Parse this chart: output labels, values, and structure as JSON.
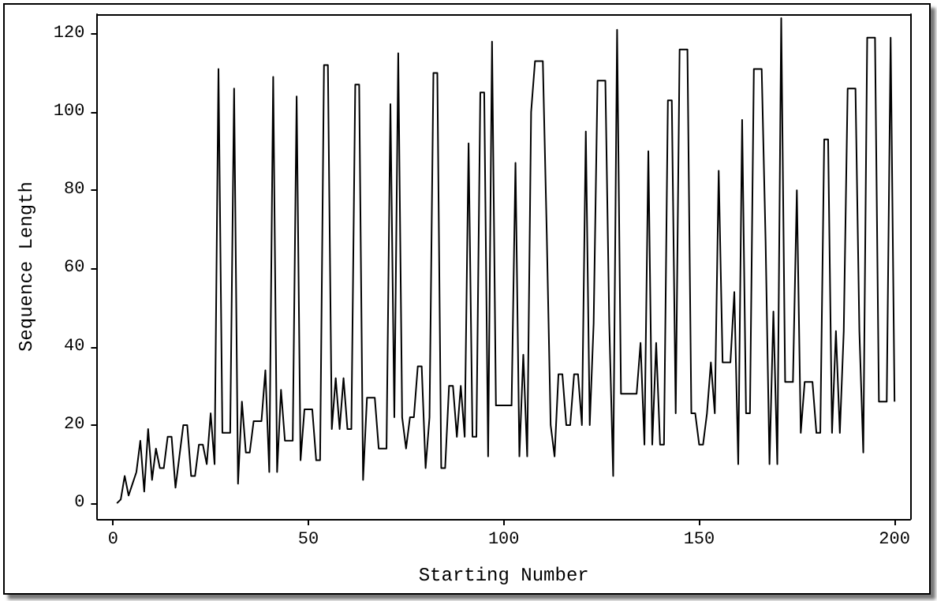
{
  "chart_data": {
    "type": "line",
    "xlabel": "Starting Number",
    "ylabel": "Sequence Length",
    "x": [
      1,
      2,
      3,
      4,
      5,
      6,
      7,
      8,
      9,
      10,
      11,
      12,
      13,
      14,
      15,
      16,
      17,
      18,
      19,
      20,
      21,
      22,
      23,
      24,
      25,
      26,
      27,
      28,
      29,
      30,
      31,
      32,
      33,
      34,
      35,
      36,
      37,
      38,
      39,
      40,
      41,
      42,
      43,
      44,
      45,
      46,
      47,
      48,
      49,
      50,
      51,
      52,
      53,
      54,
      55,
      56,
      57,
      58,
      59,
      60,
      61,
      62,
      63,
      64,
      65,
      66,
      67,
      68,
      69,
      70,
      71,
      72,
      73,
      74,
      75,
      76,
      77,
      78,
      79,
      80,
      81,
      82,
      83,
      84,
      85,
      86,
      87,
      88,
      89,
      90,
      91,
      92,
      93,
      94,
      95,
      96,
      97,
      98,
      99,
      100,
      101,
      102,
      103,
      104,
      105,
      106,
      107,
      108,
      109,
      110,
      111,
      112,
      113,
      114,
      115,
      116,
      117,
      118,
      119,
      120,
      121,
      122,
      123,
      124,
      125,
      126,
      127,
      128,
      129,
      130,
      131,
      132,
      133,
      134,
      135,
      136,
      137,
      138,
      139,
      140,
      141,
      142,
      143,
      144,
      145,
      146,
      147,
      148,
      149,
      150,
      151,
      152,
      153,
      154,
      155,
      156,
      157,
      158,
      159,
      160,
      161,
      162,
      163,
      164,
      165,
      166,
      167,
      168,
      169,
      170,
      171,
      172,
      173,
      174,
      175,
      176,
      177,
      178,
      179,
      180,
      181,
      182,
      183,
      184,
      185,
      186,
      187,
      188,
      189,
      190,
      191,
      192,
      193,
      194,
      195,
      196,
      197,
      198,
      199,
      200
    ],
    "series": [
      {
        "color": "#000000",
        "values": [
          0,
          1,
          7,
          2,
          5,
          8,
          16,
          3,
          19,
          6,
          14,
          9,
          9,
          17,
          17,
          4,
          12,
          20,
          20,
          7,
          7,
          15,
          15,
          10,
          23,
          10,
          111,
          18,
          18,
          18,
          106,
          5,
          26,
          13,
          13,
          21,
          21,
          21,
          34,
          8,
          109,
          8,
          29,
          16,
          16,
          16,
          104,
          11,
          24,
          24,
          24,
          11,
          11,
          112,
          112,
          19,
          32,
          19,
          32,
          19,
          19,
          107,
          107,
          6,
          27,
          27,
          27,
          14,
          14,
          14,
          102,
          22,
          115,
          22,
          14,
          22,
          22,
          35,
          35,
          9,
          22,
          110,
          110,
          9,
          9,
          30,
          30,
          17,
          30,
          17,
          92,
          17,
          17,
          105,
          105,
          12,
          118,
          25,
          25,
          25,
          25,
          25,
          87,
          12,
          38,
          12,
          100,
          113,
          113,
          113,
          69,
          20,
          12,
          33,
          33,
          20,
          20,
          33,
          33,
          20,
          95,
          20,
          46,
          108,
          108,
          108,
          46,
          7,
          121,
          28,
          28,
          28,
          28,
          28,
          41,
          15,
          90,
          15,
          41,
          15,
          15,
          103,
          103,
          23,
          116,
          116,
          116,
          23,
          23,
          15,
          15,
          23,
          36,
          23,
          85,
          36,
          36,
          36,
          54,
          10,
          98,
          23,
          23,
          111,
          111,
          111,
          67,
          10,
          49,
          10,
          124,
          31,
          31,
          31,
          80,
          18,
          31,
          31,
          31,
          18,
          18,
          93,
          93,
          18,
          44,
          18,
          44,
          106,
          106,
          106,
          44,
          13,
          119,
          119,
          119,
          26,
          26,
          26,
          119,
          26
        ]
      }
    ],
    "xlim": [
      -4,
      204
    ],
    "ylim": [
      -4,
      125
    ],
    "xticks": [
      0,
      50,
      100,
      150,
      200
    ],
    "yticks": [
      0,
      20,
      40,
      60,
      80,
      100,
      120
    ],
    "marker": "none",
    "line_style": "solid"
  }
}
